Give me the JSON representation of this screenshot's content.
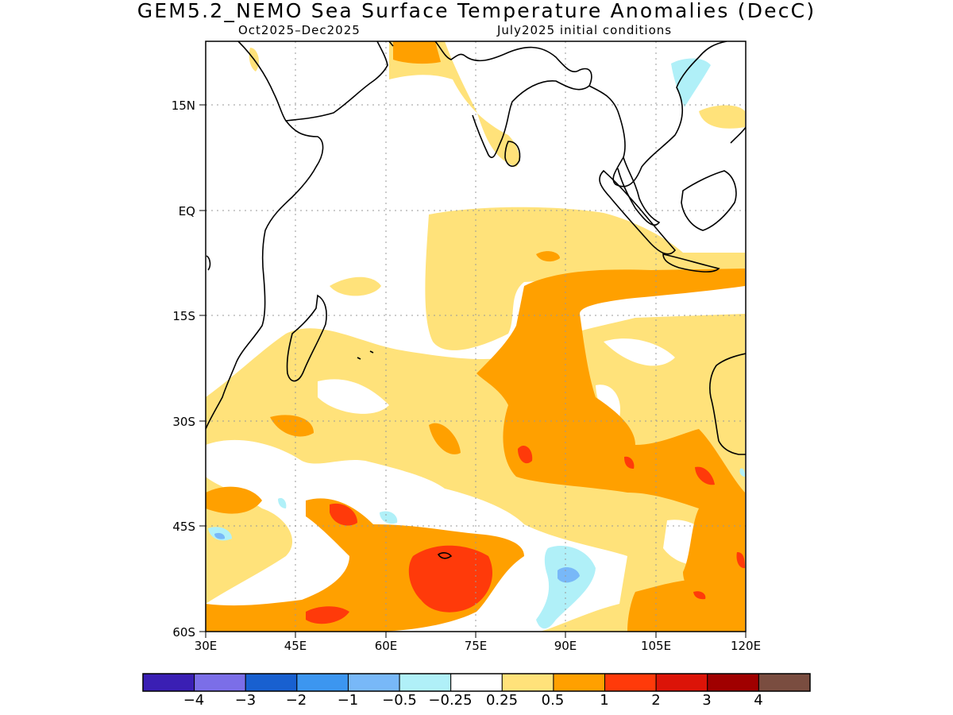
{
  "title": "GEM5.2_NEMO Sea Surface Temperature Anomalies (DecC)",
  "period": "Oct2025–Dec2025",
  "init": "July2025 initial conditions",
  "lat_labels": [
    "15N",
    "EQ",
    "15S",
    "30S",
    "45S",
    "60S"
  ],
  "lon_labels": [
    "30E",
    "45E",
    "60E",
    "75E",
    "90E",
    "105E",
    "120E"
  ],
  "colorbar": {
    "colors": [
      "#3a1fb4",
      "#7b6ee8",
      "#1860d0",
      "#3c96f0",
      "#78b8f8",
      "#b0f0f8",
      "#ffffff",
      "#ffe27a",
      "#ffa000",
      "#ff3a0a",
      "#dc1408",
      "#a00000",
      "#7a4d40"
    ],
    "labels": [
      "−4",
      "−3",
      "−2",
      "−1",
      "−0.5",
      "−0.25",
      "0.25",
      "0.5",
      "1",
      "2",
      "3",
      "4"
    ]
  }
}
